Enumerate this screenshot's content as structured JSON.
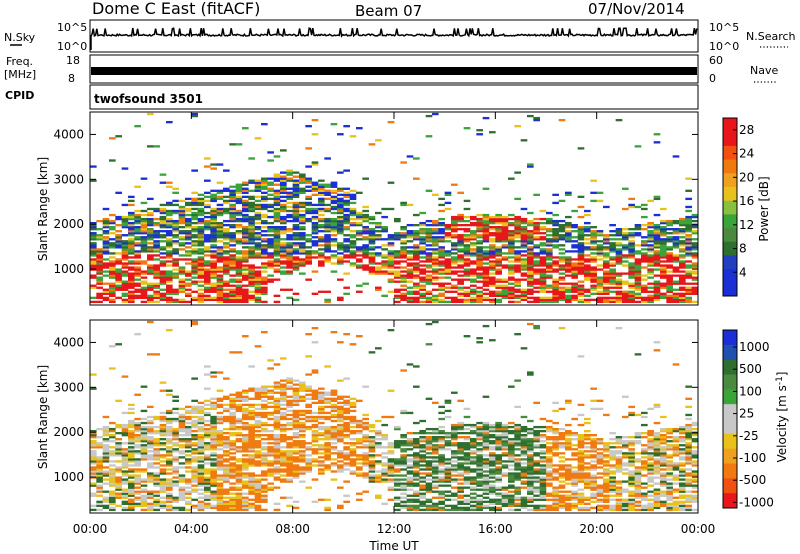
{
  "header": {
    "station": "Dome C East (fitACF)",
    "beam": "Beam 07",
    "date": "07/Nov/2014"
  },
  "nsky": {
    "label": "N.Sky",
    "ticks": [
      "10^5",
      "10^0"
    ],
    "right_label": "N.Search",
    "right_ticks": [
      "10^5",
      "10^0"
    ]
  },
  "freq": {
    "label_line1": "Freq.",
    "label_line2": "[MHz]",
    "ticks": [
      "18",
      "8"
    ],
    "right_label": "Nave",
    "right_ticks": [
      "60",
      "0"
    ]
  },
  "cpid": {
    "label": "CPID",
    "value": "twofsound 3501"
  },
  "colors": {
    "blue": "#1a2fd6",
    "darkgreen": "#2e6e2e",
    "green": "#3aa33a",
    "yellow": "#e8c21a",
    "orange": "#f07a10",
    "red": "#e8161a",
    "grey": "#c8c8c8"
  },
  "chart_data": [
    {
      "type": "heatmap",
      "name": "power",
      "xlabel": "",
      "ylabel": "Slant Range [km]",
      "yticks": [
        "1000",
        "2000",
        "3000",
        "4000"
      ],
      "ylim": [
        200,
        4500
      ],
      "colorbar": {
        "label": "Power [dB]",
        "ticks": [
          "4",
          "8",
          "12",
          "16",
          "20",
          "24",
          "28"
        ],
        "range": [
          0,
          30
        ]
      }
    },
    {
      "type": "heatmap",
      "name": "velocity",
      "xlabel": "Time UT",
      "ylabel": "Slant Range [km]",
      "yticks": [
        "1000",
        "2000",
        "3000",
        "4000"
      ],
      "ylim": [
        200,
        4500
      ],
      "colorbar": {
        "label": "Velocity [m s^-1]",
        "ticks": [
          "1000",
          "500",
          "100",
          "25",
          "-25",
          "-100",
          "-500",
          "-1000"
        ]
      }
    }
  ],
  "time_axis": {
    "label": "Time UT",
    "ticks": [
      "00:00",
      "04:00",
      "08:00",
      "12:00",
      "16:00",
      "20:00",
      "00:00"
    ]
  }
}
